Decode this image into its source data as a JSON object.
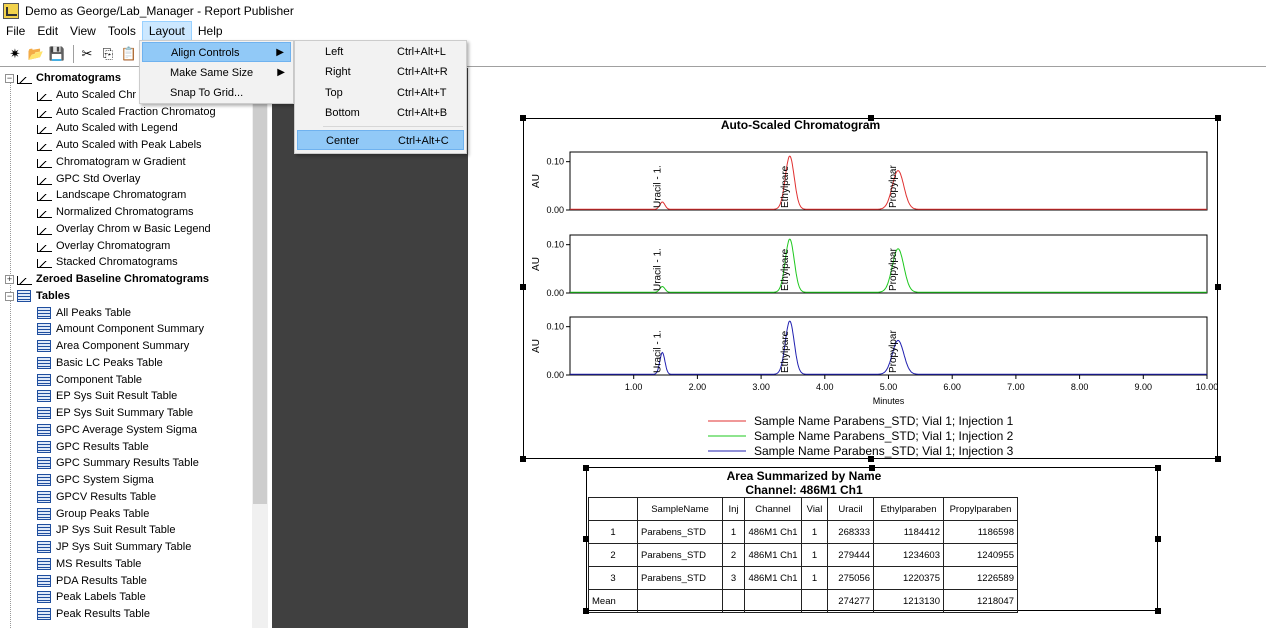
{
  "window": {
    "title": "Demo as George/Lab_Manager - Report Publisher"
  },
  "menubar": [
    {
      "label": "File"
    },
    {
      "label": "Edit"
    },
    {
      "label": "View"
    },
    {
      "label": "Tools"
    },
    {
      "label": "Layout"
    },
    {
      "label": "Help"
    }
  ],
  "toolbar": [
    {
      "icon": "wizard-icon"
    },
    {
      "icon": "open-folder-icon"
    },
    {
      "icon": "save-icon"
    },
    {
      "icon": "cut-icon"
    },
    {
      "icon": "copy-icon"
    },
    {
      "icon": "paste-icon"
    }
  ],
  "layout_menu": [
    {
      "label": "Align Controls"
    },
    {
      "label": "Make Same Size"
    },
    {
      "label": "Snap To Grid..."
    }
  ],
  "align_menu": [
    {
      "label": "Left",
      "shortcut": "Ctrl+Alt+L"
    },
    {
      "label": "Right",
      "shortcut": "Ctrl+Alt+R"
    },
    {
      "label": "Top",
      "shortcut": "Ctrl+Alt+T"
    },
    {
      "label": "Bottom",
      "shortcut": "Ctrl+Alt+B"
    },
    {
      "label": "Center",
      "shortcut": "Ctrl+Alt+C"
    }
  ],
  "tree": {
    "chromatograms_label": "Chromatograms",
    "chromatograms": [
      "Auto Scaled Chr",
      "Auto Scaled Fraction Chromatog",
      "Auto Scaled with Legend",
      "Auto Scaled with Peak Labels",
      "Chromatogram w Gradient",
      "GPC Std Overlay",
      "Landscape Chromatogram",
      "Normalized Chromatograms",
      "Overlay Chrom w Basic Legend",
      "Overlay Chromatogram",
      "Stacked Chromatograms"
    ],
    "zeroed_label": "Zeroed Baseline Chromatograms",
    "tables_label": "Tables",
    "tables": [
      "All Peaks Table",
      "Amount Component Summary",
      "Area Component Summary",
      "Basic LC Peaks Table",
      "Component Table",
      "EP Sys Suit Result Table",
      "EP Sys Suit Summary Table",
      "GPC Average System Sigma",
      "GPC Results Table",
      "GPC Summary Results Table",
      "GPC System Sigma",
      "GPCV Results Table",
      "Group Peaks Table",
      "JP Sys Suit Result Table",
      "JP Sys Suit Summary Table",
      "MS Results Table",
      "PDA Results Table",
      "Peak Labels Table",
      "Peak Results Table"
    ]
  },
  "chart_data": {
    "type": "line",
    "title": "Auto-Scaled Chromatogram",
    "xlabel": "Minutes",
    "ylabel": "AU",
    "xlim": [
      0.0,
      10.0
    ],
    "ylim": [
      0.0,
      0.12
    ],
    "x_ticks": [
      "1.00",
      "2.00",
      "3.00",
      "4.00",
      "5.00",
      "6.00",
      "7.00",
      "8.00",
      "9.00",
      "10.00"
    ],
    "y_ticks": [
      "0.00",
      "0.10"
    ],
    "peak_labels": [
      "Uracil - 1.",
      "Ethylpare",
      "Propylpar"
    ],
    "legend_position": "bottom",
    "series": [
      {
        "name": "Sample Name Parabens_STD; Vial 1; Injection 1",
        "color": "#e03030",
        "peaks": [
          {
            "rt": 1.45,
            "h": 0.015,
            "w": 0.04
          },
          {
            "rt": 3.45,
            "h": 0.11,
            "w": 0.07
          },
          {
            "rt": 5.15,
            "h": 0.08,
            "w": 0.09
          }
        ]
      },
      {
        "name": "Sample Name Parabens_STD; Vial 1; Injection 2",
        "color": "#1ec81e",
        "peaks": [
          {
            "rt": 1.45,
            "h": 0.012,
            "w": 0.04
          },
          {
            "rt": 3.45,
            "h": 0.11,
            "w": 0.07
          },
          {
            "rt": 5.15,
            "h": 0.09,
            "w": 0.09
          }
        ]
      },
      {
        "name": "Sample Name Parabens_STD; Vial 1; Injection 3",
        "color": "#2020b0",
        "peaks": [
          {
            "rt": 1.45,
            "h": 0.045,
            "w": 0.04
          },
          {
            "rt": 3.45,
            "h": 0.11,
            "w": 0.07
          },
          {
            "rt": 5.15,
            "h": 0.07,
            "w": 0.09
          }
        ]
      }
    ]
  },
  "table_report": {
    "title": "Area Summarized by Name",
    "subtitle": "Channel: 486M1 Ch1",
    "columns": [
      "",
      "SampleName",
      "Inj",
      "Channel",
      "Vial",
      "Uracil",
      "Ethylparaben",
      "Propylparaben"
    ],
    "rows": [
      [
        "1",
        "Parabens_STD",
        "1",
        "486M1 Ch1",
        "1",
        "268333",
        "1184412",
        "1186598"
      ],
      [
        "2",
        "Parabens_STD",
        "2",
        "486M1 Ch1",
        "1",
        "279444",
        "1234603",
        "1240955"
      ],
      [
        "3",
        "Parabens_STD",
        "3",
        "486M1 Ch1",
        "1",
        "275056",
        "1220375",
        "1226589"
      ],
      [
        "Mean",
        "",
        "",
        "",
        "",
        "274277",
        "1213130",
        "1218047"
      ]
    ]
  }
}
